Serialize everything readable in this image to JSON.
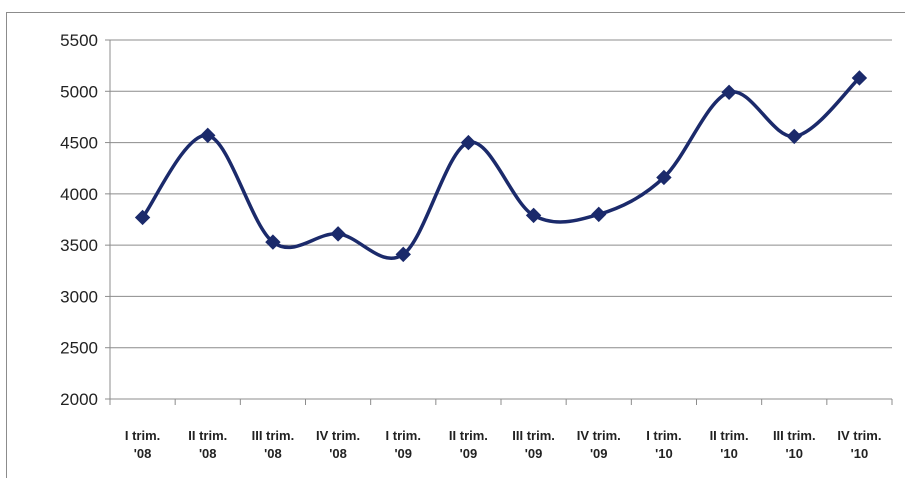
{
  "chart_data": {
    "type": "line",
    "title": "",
    "xlabel": "",
    "ylabel": "",
    "categories": [
      [
        "I trim.",
        "'08"
      ],
      [
        "II trim.",
        "'08"
      ],
      [
        "III trim.",
        "'08"
      ],
      [
        "IV trim.",
        "'08"
      ],
      [
        "I trim.",
        "'09"
      ],
      [
        "II trim.",
        "'09"
      ],
      [
        "III trim.",
        "'09"
      ],
      [
        "IV trim.",
        "'09"
      ],
      [
        "I trim.",
        "'10"
      ],
      [
        "II trim.",
        "'10"
      ],
      [
        "III trim.",
        "'10"
      ],
      [
        "IV trim.",
        "'10"
      ]
    ],
    "series": [
      {
        "values": [
          3770,
          4570,
          3530,
          3610,
          3410,
          4500,
          3790,
          3800,
          4160,
          4990,
          4560,
          5130
        ],
        "color": "#1b2a6b"
      }
    ],
    "ylim": [
      2000,
      5500
    ],
    "yticks": [
      2000,
      2500,
      3000,
      3500,
      4000,
      4500,
      5000,
      5500
    ],
    "grid": true,
    "legend": "none",
    "smooth": true,
    "marker": "diamond"
  }
}
